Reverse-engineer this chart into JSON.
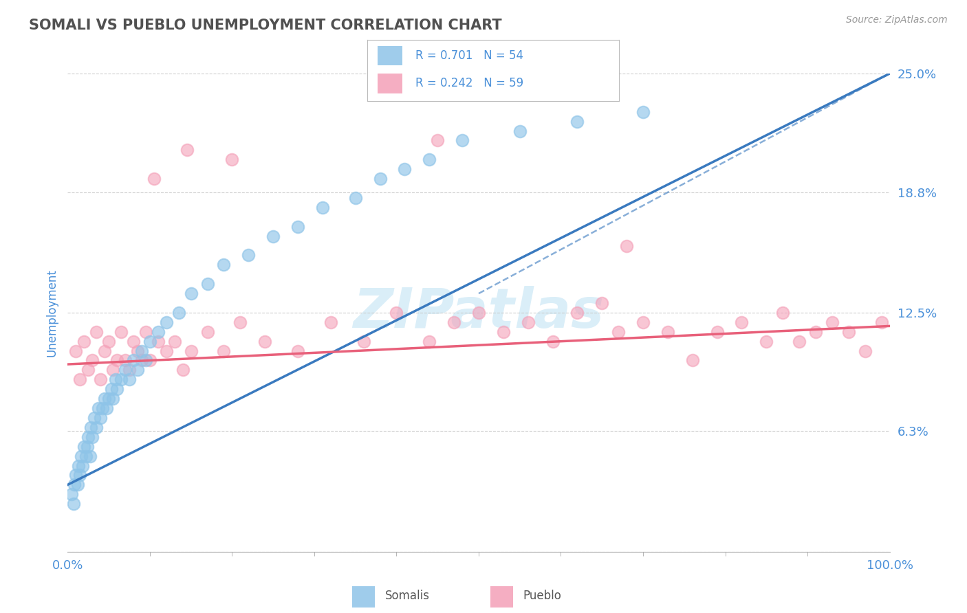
{
  "title": "SOMALI VS PUEBLO UNEMPLOYMENT CORRELATION CHART",
  "source_text": "Source: ZipAtlas.com",
  "ylabel": "Unemployment",
  "xlim": [
    0,
    100
  ],
  "ylim": [
    0,
    25
  ],
  "yticks": [
    0,
    6.3,
    12.5,
    18.8,
    25.0
  ],
  "ytick_labels": [
    "",
    "6.3%",
    "12.5%",
    "18.8%",
    "25.0%"
  ],
  "xtick_labels": [
    "0.0%",
    "100.0%"
  ],
  "somali_R": 0.701,
  "somali_N": 54,
  "pueblo_R": 0.242,
  "pueblo_N": 59,
  "somali_color": "#8ec4e8",
  "pueblo_color": "#f4a0b8",
  "somali_line_color": "#3a7abf",
  "pueblo_line_color": "#e8607a",
  "background_color": "#ffffff",
  "grid_color": "#c8c8c8",
  "title_color": "#505050",
  "axis_label_color": "#4a90d9",
  "legend_value_color": "#4a90d9",
  "watermark_color": "#daeef8",
  "somali_trendline_start_y": 3.5,
  "somali_trendline_end_y": 25.0,
  "pueblo_trendline_start_y": 9.8,
  "pueblo_trendline_end_y": 11.8,
  "somali_x": [
    0.5,
    0.7,
    0.8,
    1.0,
    1.2,
    1.3,
    1.5,
    1.6,
    1.8,
    2.0,
    2.2,
    2.4,
    2.5,
    2.7,
    2.8,
    3.0,
    3.2,
    3.5,
    3.7,
    4.0,
    4.2,
    4.5,
    4.7,
    5.0,
    5.3,
    5.5,
    5.8,
    6.0,
    6.5,
    7.0,
    7.5,
    8.0,
    8.5,
    9.0,
    9.5,
    10.0,
    11.0,
    12.0,
    13.5,
    15.0,
    17.0,
    19.0,
    22.0,
    25.0,
    28.0,
    31.0,
    35.0,
    38.0,
    41.0,
    44.0,
    48.0,
    55.0,
    62.0,
    70.0
  ],
  "somali_y": [
    3.0,
    2.5,
    3.5,
    4.0,
    3.5,
    4.5,
    4.0,
    5.0,
    4.5,
    5.5,
    5.0,
    5.5,
    6.0,
    5.0,
    6.5,
    6.0,
    7.0,
    6.5,
    7.5,
    7.0,
    7.5,
    8.0,
    7.5,
    8.0,
    8.5,
    8.0,
    9.0,
    8.5,
    9.0,
    9.5,
    9.0,
    10.0,
    9.5,
    10.5,
    10.0,
    11.0,
    11.5,
    12.0,
    12.5,
    13.5,
    14.0,
    15.0,
    15.5,
    16.5,
    17.0,
    18.0,
    18.5,
    19.5,
    20.0,
    20.5,
    21.5,
    22.0,
    22.5,
    23.0
  ],
  "pueblo_x": [
    1.0,
    1.5,
    2.0,
    2.5,
    3.0,
    3.5,
    4.0,
    4.5,
    5.0,
    5.5,
    6.0,
    6.5,
    7.0,
    7.5,
    8.0,
    8.5,
    9.0,
    9.5,
    10.0,
    11.0,
    12.0,
    13.0,
    14.0,
    15.0,
    17.0,
    19.0,
    21.0,
    24.0,
    28.0,
    32.0,
    36.0,
    40.0,
    44.0,
    47.0,
    50.0,
    53.0,
    56.0,
    59.0,
    62.0,
    65.0,
    67.0,
    70.0,
    73.0,
    76.0,
    79.0,
    82.0,
    85.0,
    87.0,
    89.0,
    91.0,
    93.0,
    95.0,
    97.0,
    99.0,
    10.5,
    14.5,
    20.0,
    45.0,
    68.0
  ],
  "pueblo_y": [
    10.5,
    9.0,
    11.0,
    9.5,
    10.0,
    11.5,
    9.0,
    10.5,
    11.0,
    9.5,
    10.0,
    11.5,
    10.0,
    9.5,
    11.0,
    10.5,
    10.0,
    11.5,
    10.0,
    11.0,
    10.5,
    11.0,
    9.5,
    10.5,
    11.5,
    10.5,
    12.0,
    11.0,
    10.5,
    12.0,
    11.0,
    12.5,
    11.0,
    12.0,
    12.5,
    11.5,
    12.0,
    11.0,
    12.5,
    13.0,
    11.5,
    12.0,
    11.5,
    10.0,
    11.5,
    12.0,
    11.0,
    12.5,
    11.0,
    11.5,
    12.0,
    11.5,
    10.5,
    12.0,
    19.5,
    21.0,
    20.5,
    21.5,
    16.0
  ]
}
